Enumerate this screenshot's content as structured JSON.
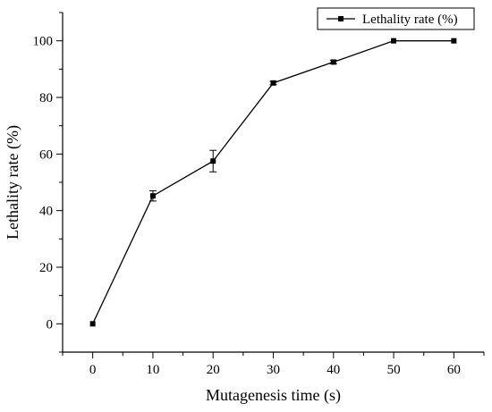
{
  "chart_data": {
    "type": "line",
    "xlabel": "Mutagenesis time (s)",
    "ylabel": "Lethality rate (%)",
    "xlim": [
      -5,
      65
    ],
    "ylim": [
      -10,
      110
    ],
    "xticks": [
      0,
      10,
      20,
      30,
      40,
      50,
      60
    ],
    "yticks": [
      0,
      20,
      40,
      60,
      80,
      100
    ],
    "grid": false,
    "legend_position": "top-right",
    "series": [
      {
        "name": "Lethality rate (%)",
        "color": "#000000",
        "marker": "square",
        "x": [
          0,
          10,
          20,
          30,
          40,
          50,
          60
        ],
        "y": [
          0,
          45.2,
          57.5,
          85.1,
          92.5,
          100,
          100
        ],
        "error": [
          0,
          1.8,
          3.8,
          0.6,
          0.6,
          0,
          0
        ]
      }
    ]
  }
}
